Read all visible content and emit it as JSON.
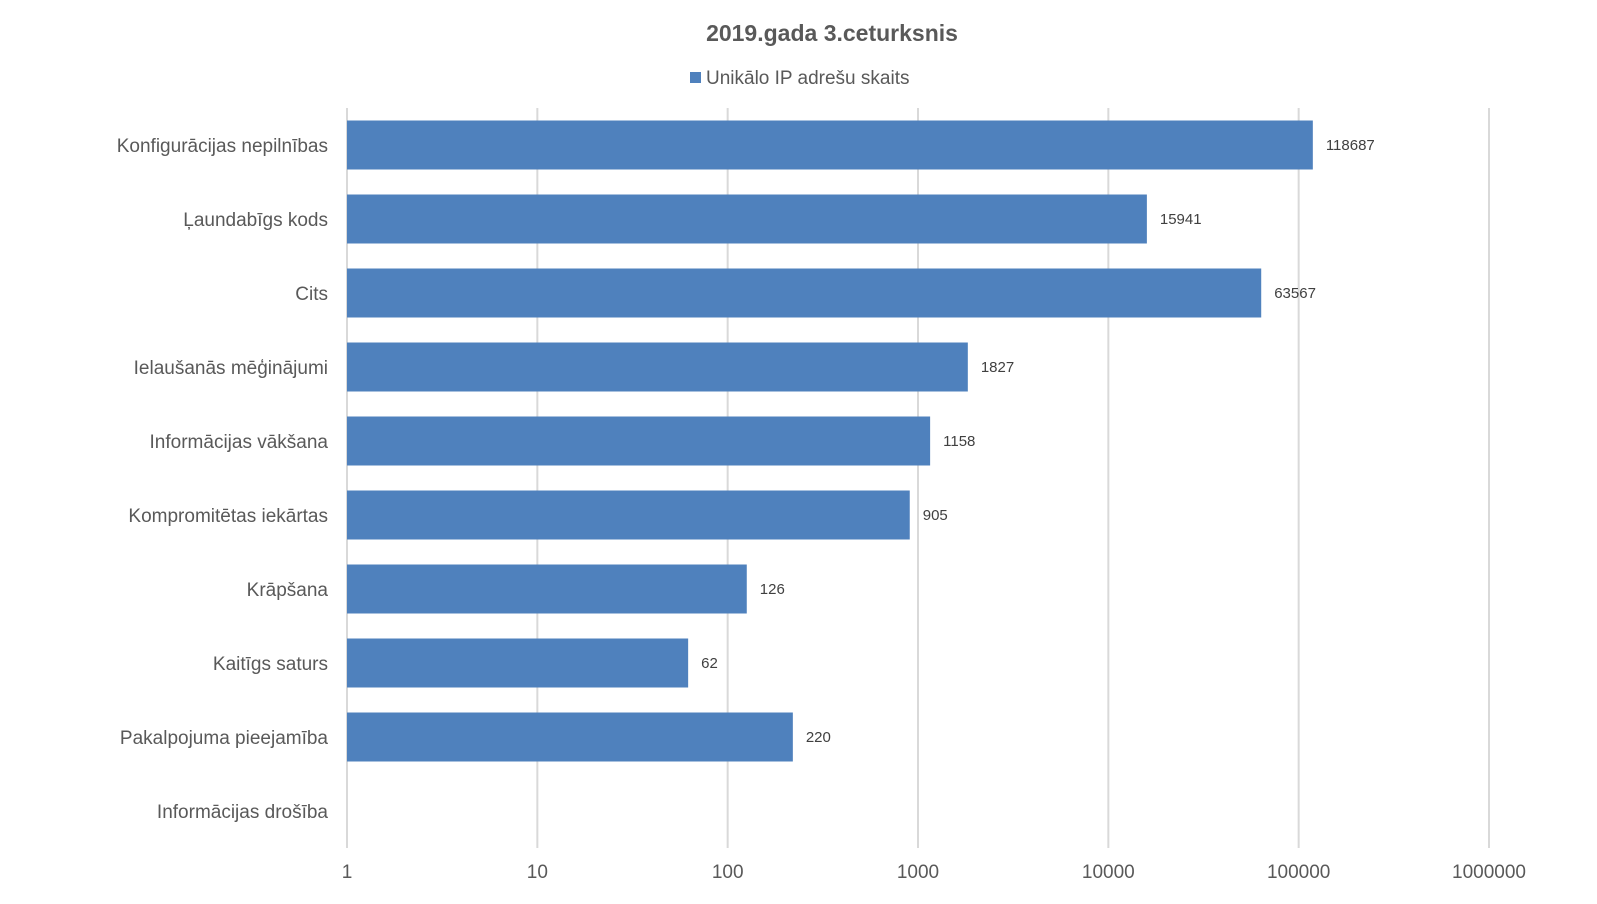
{
  "chart_data": {
    "type": "bar",
    "orientation": "horizontal",
    "title": "2019.gada 3.ceturksnis",
    "xscale": "log",
    "xlim": [
      1,
      1000000
    ],
    "x_ticks": [
      "1",
      "10",
      "100",
      "1000",
      "10000",
      "100000",
      "1000000"
    ],
    "grid": true,
    "legend_position": "top",
    "categories": [
      "Konfigurācijas nepilnības",
      "Ļaundabīgs kods",
      "Cits",
      "Ielaušanās mēģinājumi",
      "Informācijas vākšana",
      "Kompromitētas iekārtas",
      "Krāpšana",
      "Kaitīgs saturs",
      "Pakalpojuma pieejamība",
      "Informācijas drošība"
    ],
    "series": [
      {
        "name": "Unikālo IP adrešu skaits",
        "color": "#4f81bd",
        "values": [
          118687,
          15941,
          63567,
          1827,
          1158,
          905,
          126,
          62,
          220,
          null
        ],
        "labels": [
          "118687",
          "15941",
          "63567",
          "1827",
          "1158",
          "905",
          "126",
          "62",
          "220",
          ""
        ]
      }
    ]
  }
}
